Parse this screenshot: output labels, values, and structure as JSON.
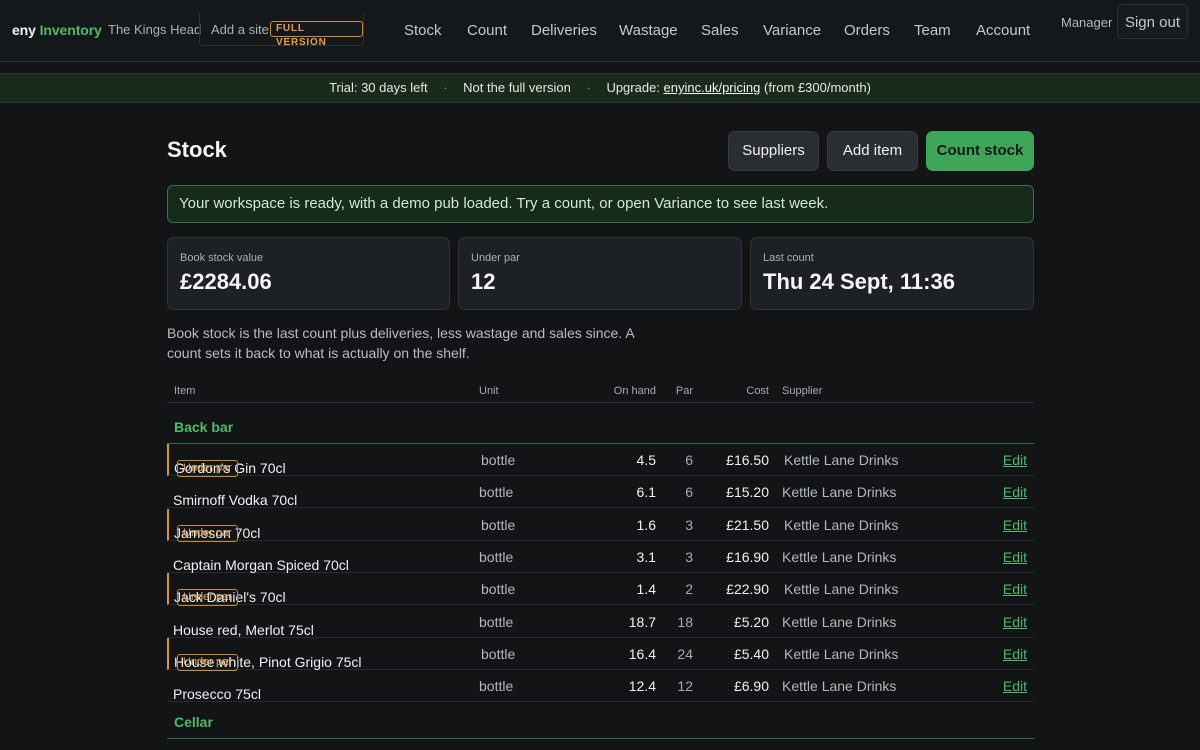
{
  "brand": {
    "part1": "eny",
    "part2": "Inventory"
  },
  "site": {
    "name": "The Kings Head",
    "add_label": "Add a site",
    "badge": "FULL VERSION"
  },
  "nav": {
    "items": [
      "Stock",
      "Count",
      "Deliveries",
      "Wastage",
      "Sales",
      "Variance",
      "Orders",
      "Team",
      "Account"
    ]
  },
  "user": {
    "role": "Manager",
    "signout_label": "Sign out"
  },
  "trial": {
    "days": "Trial: 30 days left",
    "note": "Not the full version",
    "upgrade_prefix": "Upgrade:",
    "upgrade_link": "enyinc.uk/pricing",
    "upgrade_suffix": "(from £300/month)"
  },
  "page": {
    "title": "Stock",
    "buttons": {
      "suppliers": "Suppliers",
      "add_item": "Add item",
      "count_stock": "Count stock"
    },
    "notice": "Your workspace is ready, with a demo pub loaded. Try a count, or open Variance to see last week.",
    "stats": [
      {
        "label": "Book stock value",
        "value": "£2284.06"
      },
      {
        "label": "Under par",
        "value": "12"
      },
      {
        "label": "Last count",
        "value": "Thu 24 Sept, 11:36"
      }
    ],
    "explain": "Book stock is the last count plus deliveries, less wastage and sales since. A count sets it back to what is actually on the shelf."
  },
  "table": {
    "headers": {
      "item": "Item",
      "unit": "Unit",
      "on_hand": "On hand",
      "par": "Par",
      "cost": "Cost",
      "supplier": "Supplier"
    },
    "under_par_label": "Under par",
    "edit_label": "Edit",
    "groups": [
      {
        "name": "Back bar",
        "rows": [
          {
            "name": "Gordon's Gin 70cl",
            "under_par": true,
            "unit": "bottle",
            "on_hand": "4.5",
            "par": "6",
            "cost": "£16.50",
            "supplier": "Kettle Lane Drinks"
          },
          {
            "name": "Smirnoff Vodka 70cl",
            "under_par": false,
            "unit": "bottle",
            "on_hand": "6.1",
            "par": "6",
            "cost": "£15.20",
            "supplier": "Kettle Lane Drinks"
          },
          {
            "name": "Jameson 70cl",
            "under_par": true,
            "unit": "bottle",
            "on_hand": "1.6",
            "par": "3",
            "cost": "£21.50",
            "supplier": "Kettle Lane Drinks"
          },
          {
            "name": "Captain Morgan Spiced 70cl",
            "under_par": false,
            "unit": "bottle",
            "on_hand": "3.1",
            "par": "3",
            "cost": "£16.90",
            "supplier": "Kettle Lane Drinks"
          },
          {
            "name": "Jack Daniel's 70cl",
            "under_par": true,
            "unit": "bottle",
            "on_hand": "1.4",
            "par": "2",
            "cost": "£22.90",
            "supplier": "Kettle Lane Drinks"
          },
          {
            "name": "House red, Merlot 75cl",
            "under_par": false,
            "unit": "bottle",
            "on_hand": "18.7",
            "par": "18",
            "cost": "£5.20",
            "supplier": "Kettle Lane Drinks"
          },
          {
            "name": "House white, Pinot Grigio 75cl",
            "under_par": true,
            "unit": "bottle",
            "on_hand": "16.4",
            "par": "24",
            "cost": "£5.40",
            "supplier": "Kettle Lane Drinks"
          },
          {
            "name": "Prosecco 75cl",
            "under_par": false,
            "unit": "bottle",
            "on_hand": "12.4",
            "par": "12",
            "cost": "£6.90",
            "supplier": "Kettle Lane Drinks"
          }
        ]
      },
      {
        "name": "Cellar",
        "rows": []
      }
    ]
  },
  "colors": {
    "accent": "#4dbb6a",
    "warning": "#e0932f",
    "background": "#121416"
  }
}
